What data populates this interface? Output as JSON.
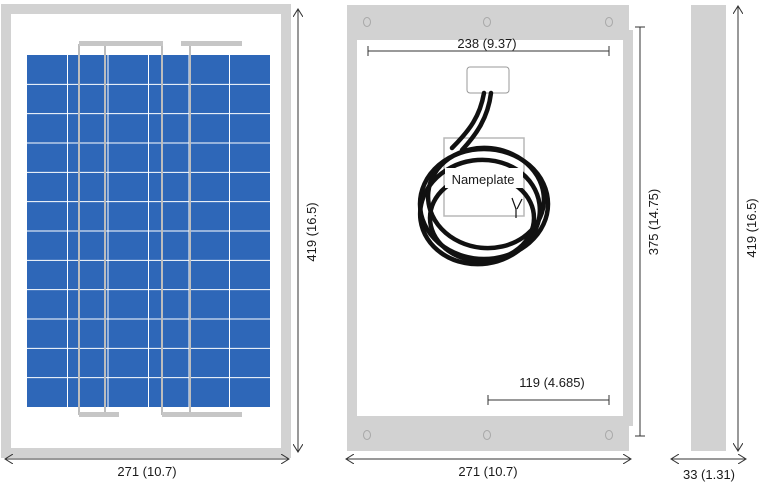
{
  "colors": {
    "frame": "#d2d2d2",
    "cell": "#2e67b8",
    "cell_line": "#ffffff",
    "dimension_line": "#333333",
    "cable": "#111111"
  },
  "front_view": {
    "height_label": "419 (16.5)",
    "width_label": "271 (10.7)"
  },
  "back_view": {
    "top_width_label": "238 (9.37)",
    "inner_height_label": "375 (14.75)",
    "half_width_label": "119 (4.685)",
    "width_label": "271 (10.7)",
    "nameplate_label": "Nameplate"
  },
  "side_view": {
    "height_label": "419 (16.5)",
    "depth_label": "33 (1.31)"
  }
}
